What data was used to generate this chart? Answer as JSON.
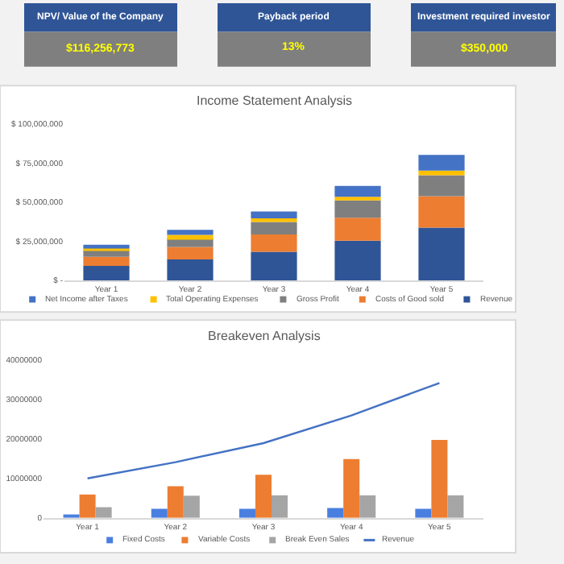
{
  "chart_data": [
    {
      "type": "other",
      "title": "NPV/ Value of the Company",
      "annotations": [
        "$116,256,773"
      ]
    },
    {
      "type": "other",
      "title": "Payback period",
      "annotations": [
        "13%"
      ]
    },
    {
      "type": "other",
      "title": "Investment required investor",
      "annotations": [
        "$350,000"
      ]
    },
    {
      "type": "bar",
      "title": "Income Statement Analysis",
      "stacked": true,
      "legend": "bottom",
      "categories": [
        "Year 1",
        "Year 2",
        "Year 3",
        "Year 4",
        "Year 5"
      ],
      "ylim": [
        0,
        100000000
      ],
      "yticks": [
        {
          "value": 0,
          "label": "$ -"
        },
        {
          "value": 25000000,
          "label": "$ 25,000,000"
        },
        {
          "value": 50000000,
          "label": "$ 50,000,000"
        },
        {
          "value": 75000000,
          "label": "$ 75,000,000"
        },
        {
          "value": 100000000,
          "label": "$ 100,000,000"
        }
      ],
      "series": [
        {
          "name": "Revenue",
          "color": "#2f5597",
          "values": [
            9300000,
            13300000,
            18300000,
            25300000,
            33700000
          ]
        },
        {
          "name": "Costs of Good sold",
          "color": "#ed7d31",
          "values": [
            5700000,
            8000000,
            11000000,
            14700000,
            20000000
          ]
        },
        {
          "name": "Gross Profit",
          "color": "#7f7f7f",
          "values": [
            4300000,
            5700000,
            8000000,
            11000000,
            13300000
          ]
        },
        {
          "name": "Total Operating Expenses",
          "color": "#ffc000",
          "values": [
            1000000,
            2000000,
            2300000,
            2300000,
            3000000
          ]
        },
        {
          "name": "Net Income after Taxes",
          "color": "#4472c4",
          "values": [
            2400000,
            3300000,
            4300000,
            7000000,
            10000000
          ]
        }
      ]
    },
    {
      "type": "bar",
      "title": "Breakeven Analysis",
      "legend": "bottom",
      "categories": [
        "Year 1",
        "Year 2",
        "Year 3",
        "Year 4",
        "Year 5"
      ],
      "ylim": [
        0,
        40000000
      ],
      "yticks": [
        0,
        10000000,
        20000000,
        30000000,
        40000000
      ],
      "series": [
        {
          "name": "Fixed Costs",
          "color": "#4a7fe0",
          "values": [
            900000,
            2300000,
            2300000,
            2500000,
            2300000
          ]
        },
        {
          "name": "Variable Costs",
          "color": "#ed7d31",
          "values": [
            5900000,
            8000000,
            10900000,
            14900000,
            19700000
          ]
        },
        {
          "name": "Break Even Sales",
          "color": "#a5a5a5",
          "values": [
            2700000,
            5600000,
            5700000,
            5700000,
            5700000
          ]
        },
        {
          "name": "Revenue",
          "type": "line",
          "color": "#4472c4",
          "values": [
            10000000,
            14100000,
            18900000,
            25900000,
            34100000
          ]
        }
      ]
    }
  ]
}
